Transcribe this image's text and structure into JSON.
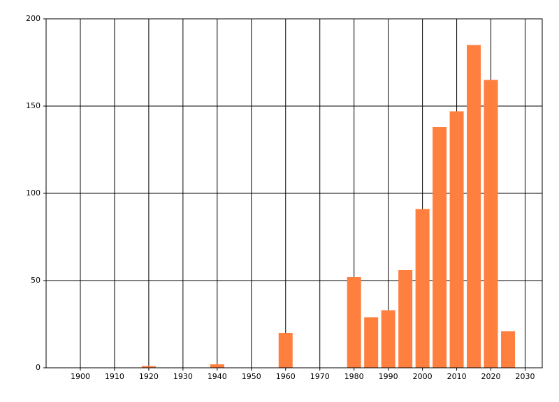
{
  "chart_data": {
    "type": "bar",
    "x": [
      1920,
      1940,
      1960,
      1980,
      1985,
      1990,
      1995,
      2000,
      2005,
      2010,
      2015,
      2020,
      2025
    ],
    "values": [
      1,
      2,
      20,
      52,
      29,
      33,
      56,
      91,
      138,
      147,
      185,
      165,
      21
    ],
    "color": "#ff7f3f",
    "xlim": [
      1890,
      2035
    ],
    "xticks": [
      1900,
      1910,
      1920,
      1930,
      1940,
      1950,
      1960,
      1970,
      1980,
      1990,
      2000,
      2010,
      2020,
      2030
    ],
    "ylim": [
      0,
      200
    ],
    "yticks": [
      0,
      50,
      100,
      150,
      200
    ],
    "grid": true
  }
}
